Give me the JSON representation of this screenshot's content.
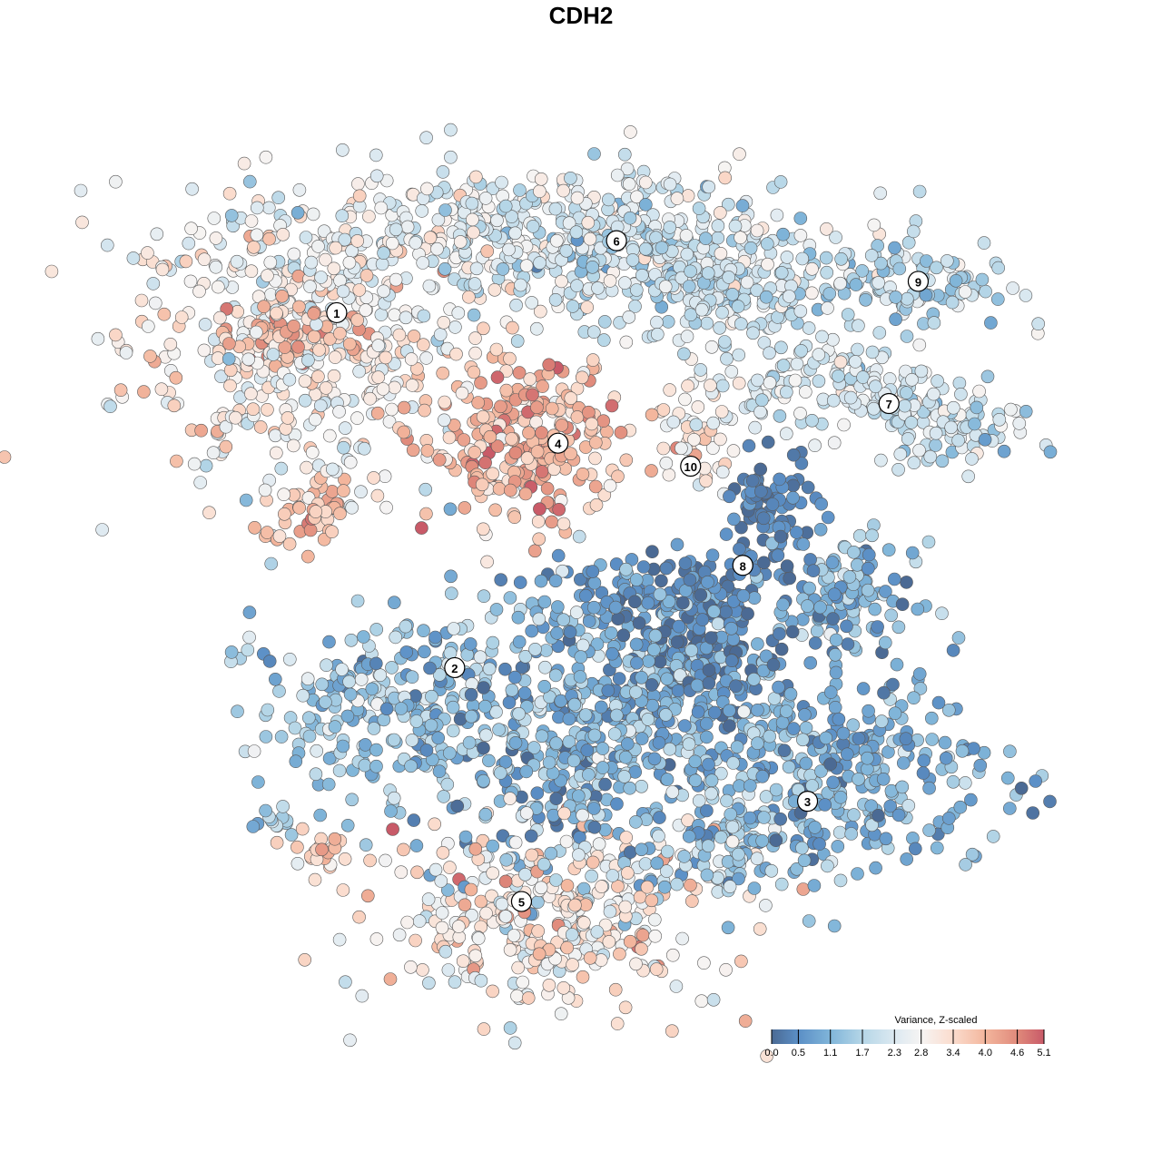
{
  "chart_data": {
    "type": "scatter",
    "title": "CDH2",
    "xlabel": "",
    "ylabel": "",
    "xlim": [
      -42,
      42
    ],
    "ylim": [
      -42,
      42
    ],
    "grid": false,
    "note": "points generated from cluster summaries (center, spread, count, mean value) in embedding units",
    "clusters": [
      {
        "id": "1",
        "x": -27,
        "y": 22.6,
        "sx": 10.4,
        "sy": 8.7,
        "n": 450,
        "mean": 2.9,
        "sd": 0.6
      },
      {
        "id": "1",
        "x": -26.1,
        "y": 7,
        "sx": 2.6,
        "sy": 2,
        "n": 40,
        "mean": 3.9,
        "sd": 0.4
      },
      {
        "id": "1",
        "x": -27.8,
        "y": 23.5,
        "sx": 4,
        "sy": 2,
        "n": 60,
        "mean": 3.9,
        "sd": 0.5
      },
      {
        "id": "6",
        "x": -7,
        "y": 33,
        "sx": 17,
        "sy": 4.3,
        "n": 400,
        "mean": 2.4,
        "sd": 0.5
      },
      {
        "id": "6",
        "x": 5.2,
        "y": 31.3,
        "sx": 8.7,
        "sy": 4.3,
        "n": 200,
        "mean": 1.9,
        "sd": 0.5
      },
      {
        "id": "6",
        "x": 13.9,
        "y": 27.8,
        "sx": 5,
        "sy": 3.5,
        "n": 120,
        "mean": 2.0,
        "sd": 0.4
      },
      {
        "id": "4",
        "x": -5.2,
        "y": 13,
        "sx": 6,
        "sy": 5,
        "n": 250,
        "mean": 3.9,
        "sd": 0.6
      },
      {
        "id": "9",
        "x": 30.4,
        "y": 28.7,
        "sx": 7,
        "sy": 3,
        "n": 120,
        "mean": 1.8,
        "sd": 0.5
      },
      {
        "id": "7",
        "x": 24.3,
        "y": 19.1,
        "sx": 7,
        "sy": 2.6,
        "n": 140,
        "mean": 2.2,
        "sd": 0.4
      },
      {
        "id": "7",
        "x": 35.7,
        "y": 14.8,
        "sx": 5,
        "sy": 2.2,
        "n": 90,
        "mean": 2.0,
        "sd": 0.5
      },
      {
        "id": "10",
        "x": 11.3,
        "y": 13.9,
        "sx": 2.6,
        "sy": 3.5,
        "n": 50,
        "mean": 3.0,
        "sd": 0.5
      },
      {
        "id": "8",
        "x": 18.3,
        "y": 6.1,
        "sx": 2.6,
        "sy": 4,
        "n": 90,
        "mean": 0.3,
        "sd": 0.3
      },
      {
        "id": "8",
        "x": 25.2,
        "y": -1.3,
        "sx": 4.3,
        "sy": 3,
        "n": 120,
        "mean": 1.1,
        "sd": 0.5
      },
      {
        "id": "8",
        "x": 8.7,
        "y": -0.9,
        "sx": 6,
        "sy": 2.6,
        "n": 120,
        "mean": 0.4,
        "sd": 0.4
      },
      {
        "id": "2",
        "x": -20,
        "y": -12.2,
        "sx": 7,
        "sy": 5,
        "n": 200,
        "mean": 1.4,
        "sd": 0.5
      },
      {
        "id": "main",
        "x": 0.9,
        "y": -13,
        "sx": 11.3,
        "sy": 8.7,
        "n": 600,
        "mean": 1.1,
        "sd": 0.6
      },
      {
        "id": "main",
        "x": 11.3,
        "y": -7,
        "sx": 5,
        "sy": 3.5,
        "n": 150,
        "mean": 0.4,
        "sd": 0.4
      },
      {
        "id": "3",
        "x": 23.5,
        "y": -18.3,
        "sx": 10.4,
        "sy": 6,
        "n": 350,
        "mean": 1.0,
        "sd": 0.5
      },
      {
        "id": "3",
        "x": 13.9,
        "y": -25.2,
        "sx": 3.5,
        "sy": 3.5,
        "n": 80,
        "mean": 1.6,
        "sd": 0.6
      },
      {
        "id": "5",
        "x": -3.5,
        "y": -32.2,
        "sx": 10.4,
        "sy": 5.5,
        "n": 350,
        "mean": 3.0,
        "sd": 0.7
      },
      {
        "id": "s1",
        "x": -24.8,
        "y": -26.5,
        "sx": 2.2,
        "sy": 1.7,
        "n": 25,
        "mean": 3.6,
        "sd": 0.4
      },
      {
        "id": "s2",
        "x": -29.1,
        "y": -23,
        "sx": 1.7,
        "sy": 0.9,
        "n": 12,
        "mean": 1.5,
        "sd": 0.5
      }
    ],
    "cluster_labels": [
      {
        "text": "1",
        "x": -23.4,
        "y": 25.7
      },
      {
        "text": "2",
        "x": -12.1,
        "y": -8.3
      },
      {
        "text": "3",
        "x": 21.7,
        "y": -21.1
      },
      {
        "text": "4",
        "x": -2.2,
        "y": 13.2
      },
      {
        "text": "5",
        "x": -5.7,
        "y": -30.7
      },
      {
        "text": "6",
        "x": 3.4,
        "y": 32.6
      },
      {
        "text": "7",
        "x": 29.5,
        "y": 17
      },
      {
        "text": "8",
        "x": 15.5,
        "y": 1.5
      },
      {
        "text": "9",
        "x": 32.3,
        "y": 28.7
      },
      {
        "text": "10",
        "x": 10.5,
        "y": 11
      }
    ],
    "legend": {
      "title": "Variance, Z-scaled",
      "placement": "bottom-right",
      "ticks": [
        "0.0",
        "0.5",
        "1.1",
        "1.7",
        "2.3",
        "2.8",
        "3.4",
        "4.0",
        "4.6",
        "5.1"
      ],
      "tick_values": [
        0,
        0.5,
        1.1,
        1.7,
        2.3,
        2.8,
        3.4,
        4.0,
        4.6,
        5.1
      ],
      "colors": [
        "#4b6a94",
        "#5b8fc6",
        "#80b5d9",
        "#b5d6e7",
        "#dce9f1",
        "#f6f4f3",
        "#fbdccd",
        "#f3b69d",
        "#e08a7b",
        "#c85a68"
      ],
      "range": [
        0,
        5.1
      ]
    }
  }
}
